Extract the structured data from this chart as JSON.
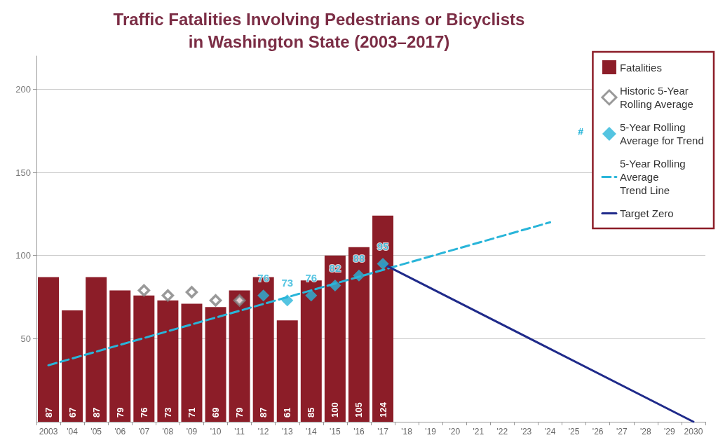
{
  "chart_data": {
    "type": "bar",
    "title": "Traffic Fatalities Involving Pedestrians or Bicyclists\nin Washington State (2003–2017)",
    "categories": [
      "2003",
      "'04",
      "'05",
      "'06",
      "'07",
      "'08",
      "'09",
      "'10",
      "'11",
      "'12",
      "'13",
      "'14",
      "'15",
      "'16",
      "'17",
      "'18",
      "'19",
      "'20",
      "'21",
      "'22",
      "'23",
      "'24",
      "'25",
      "'26",
      "'27",
      "'28",
      "'29",
      "2030"
    ],
    "series": [
      {
        "name": "Fatalities",
        "color": "#8c1d28",
        "values": [
          87,
          67,
          87,
          79,
          76,
          73,
          71,
          69,
          79,
          87,
          61,
          85,
          100,
          105,
          124,
          null,
          null,
          null,
          null,
          null,
          null,
          null,
          null,
          null,
          null,
          null,
          null,
          null
        ],
        "value_labels": [
          "87",
          "67",
          "87",
          "79",
          "76",
          "73",
          "71",
          "69",
          "79",
          "87",
          "61",
          "85",
          "100",
          "105",
          "124",
          null,
          null,
          null,
          null,
          null,
          null,
          null,
          null,
          null,
          null,
          null,
          null,
          null
        ]
      },
      {
        "name": "Historic 5-Year\nRolling Average",
        "type": "scatter",
        "marker": "diamond",
        "color": "#808080",
        "values": [
          null,
          null,
          null,
          null,
          79,
          76,
          78,
          73,
          73,
          null,
          null,
          null,
          null,
          null,
          null,
          null,
          null,
          null,
          null,
          null,
          null,
          null,
          null,
          null,
          null,
          null,
          null,
          null
        ]
      },
      {
        "name": "5-Year Rolling\nAverage for Trend",
        "type": "scatter",
        "marker": "diamond",
        "color": "#29b5d9",
        "values": [
          null,
          null,
          null,
          null,
          null,
          null,
          null,
          null,
          null,
          76,
          73,
          76,
          82,
          88,
          95,
          null,
          null,
          null,
          null,
          null,
          null,
          null,
          null,
          null,
          null,
          null,
          null,
          null
        ],
        "value_labels": [
          null,
          null,
          null,
          null,
          null,
          null,
          null,
          null,
          null,
          "76",
          "73",
          "76",
          "82",
          "88",
          "95",
          null,
          null,
          null,
          null,
          null,
          null,
          null,
          null,
          null,
          null,
          null,
          null,
          null
        ]
      },
      {
        "name": "5-Year Rolling\nAverage\nTrend Line",
        "type": "line",
        "marker": "none",
        "line_style": "dashed",
        "color": "#29b5d9",
        "values": [
          34,
          null,
          null,
          null,
          null,
          null,
          null,
          null,
          null,
          null,
          null,
          null,
          null,
          null,
          null,
          null,
          null,
          null,
          null,
          null,
          null,
          120,
          null,
          null,
          null,
          null,
          null,
          null
        ]
      },
      {
        "name": "Target Zero",
        "type": "line",
        "marker": "none",
        "line_style": "solid",
        "color": "#1f2a8a",
        "values": [
          null,
          null,
          null,
          null,
          null,
          null,
          null,
          null,
          null,
          null,
          null,
          null,
          null,
          null,
          95,
          null,
          null,
          null,
          null,
          null,
          null,
          null,
          null,
          null,
          null,
          null,
          null,
          0
        ]
      }
    ],
    "ylim": [
      0,
      220
    ],
    "yticks": [
      50,
      100,
      150,
      200
    ],
    "grid": "y",
    "legend": "top right",
    "annotations": [
      "#"
    ]
  }
}
